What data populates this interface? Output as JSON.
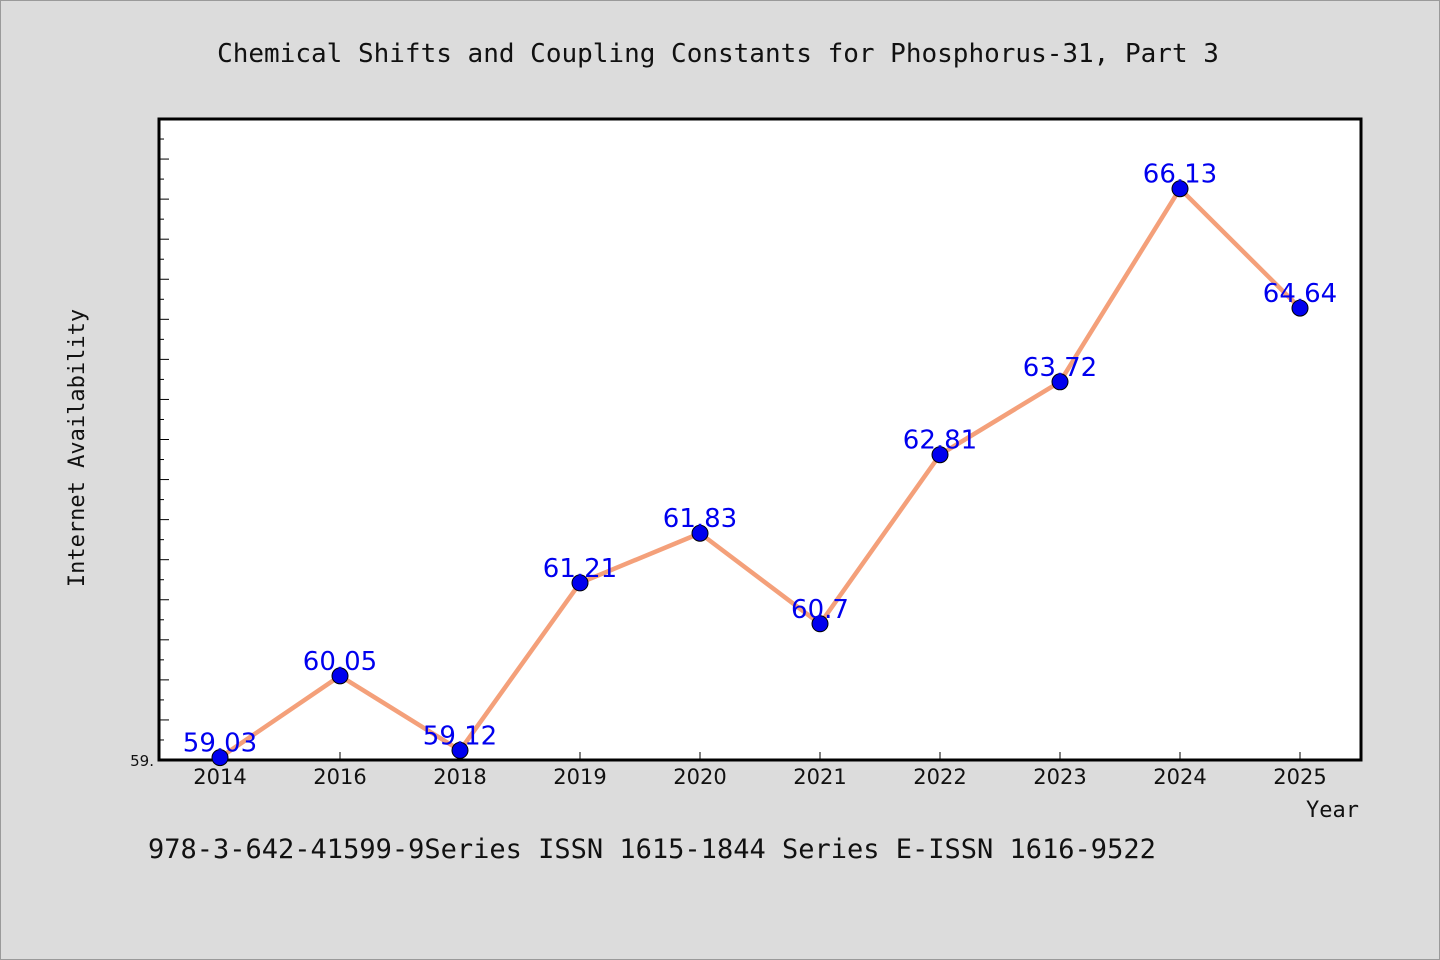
{
  "chart_data": {
    "type": "line",
    "title": "Chemical Shifts and Coupling Constants for Phosphorus-31, Part 3",
    "xlabel": "Year",
    "ylabel": "Internet Availability",
    "categories": [
      "2014",
      "2016",
      "2018",
      "2019",
      "2020",
      "2021",
      "2022",
      "2023",
      "2024",
      "2025"
    ],
    "values": [
      59.03,
      60.05,
      59.12,
      61.21,
      61.83,
      60.7,
      62.81,
      63.72,
      66.13,
      64.64
    ],
    "data_labels": [
      "59.03",
      "60.05",
      "59.12",
      "61.21",
      "61.83",
      "60.7",
      "62.81",
      "63.72",
      "66.13",
      "64.64"
    ],
    "ylim": [
      59.0,
      67.0
    ],
    "y_tick_label": "59.",
    "grid": false,
    "legend": "none",
    "line_color": "#f4a07a",
    "marker_color": "#0000ee",
    "label_color": "#0000ee"
  },
  "footer": {
    "text": "978-3-642-41599-9Series ISSN 1615-1844 Series E-ISSN 1616-9522"
  }
}
